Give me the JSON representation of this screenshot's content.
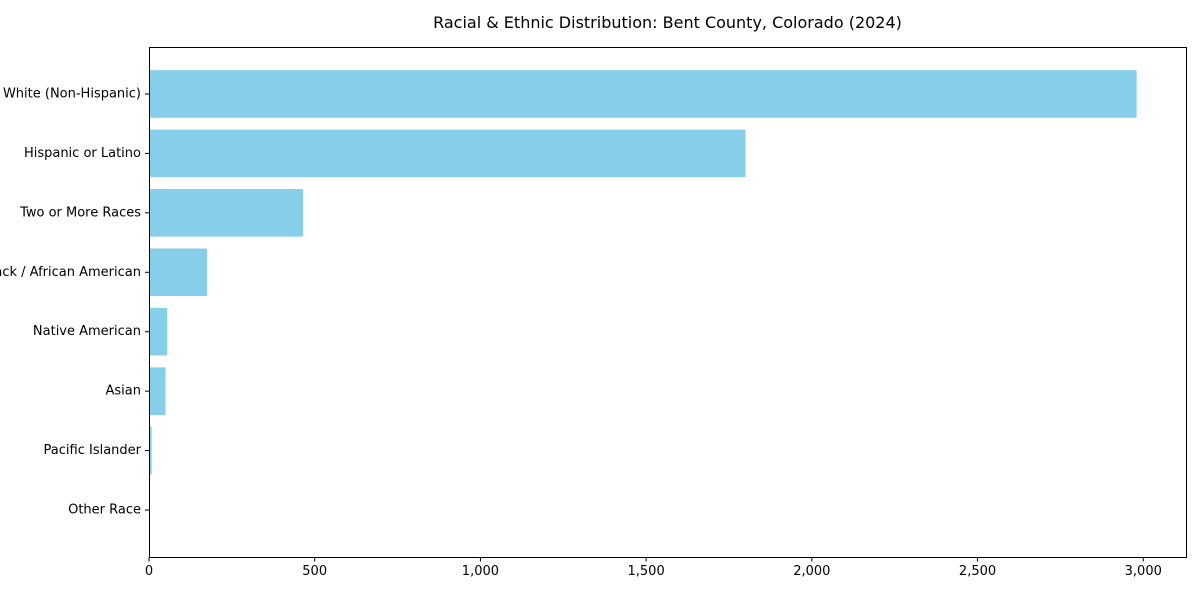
{
  "chart_data": {
    "type": "bar",
    "orientation": "horizontal",
    "title": "Racial & Ethnic Distribution: Bent County, Colorado (2024)",
    "categories": [
      "White (Non-Hispanic)",
      "Hispanic or Latino",
      "Two or More Races",
      "Black / African American",
      "Native American",
      "Asian",
      "Pacific Islander",
      "Other Race"
    ],
    "values": [
      2980,
      1800,
      465,
      175,
      55,
      50,
      8,
      0
    ],
    "xlabel": "",
    "ylabel": "",
    "xlim": [
      0,
      3129
    ],
    "xticks": [
      0,
      500,
      1000,
      1500,
      2000,
      2500,
      3000
    ],
    "xtick_labels": [
      "0",
      "500",
      "1,000",
      "1,500",
      "2,000",
      "2,500",
      "3,000"
    ],
    "grid": false,
    "legend": null,
    "bar_color": "#87CEEB",
    "axis_color": "#000000",
    "background_color": "#ffffff"
  }
}
